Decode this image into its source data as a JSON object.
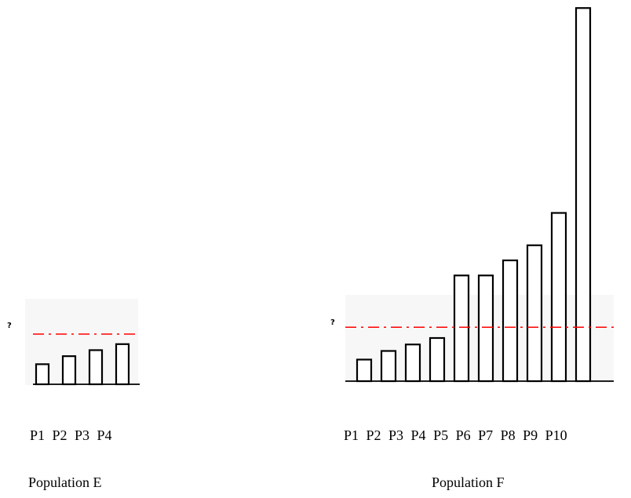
{
  "chart_data": [
    {
      "type": "bar",
      "title": "Population E",
      "categories": [
        "P1",
        "P2",
        "P3",
        "P4"
      ],
      "values": [
        1.0,
        1.4,
        1.7,
        2.0
      ],
      "threshold": 2.5,
      "threshold_label": "?",
      "threshold_color": "#ff0000",
      "ylim": [
        0,
        2.5
      ],
      "grid": false
    },
    {
      "type": "bar",
      "title": "Population F",
      "categories": [
        "P1",
        "P2",
        "P3",
        "P4",
        "P5",
        "P6",
        "P7",
        "P8",
        "P9",
        "P10"
      ],
      "values": [
        1.0,
        1.4,
        1.7,
        2.0,
        4.9,
        4.9,
        5.6,
        6.3,
        7.8,
        17.3
      ],
      "threshold": 2.5,
      "threshold_label": "?",
      "threshold_color": "#ff0000",
      "ylim": [
        0,
        17.3
      ],
      "grid": false
    }
  ]
}
